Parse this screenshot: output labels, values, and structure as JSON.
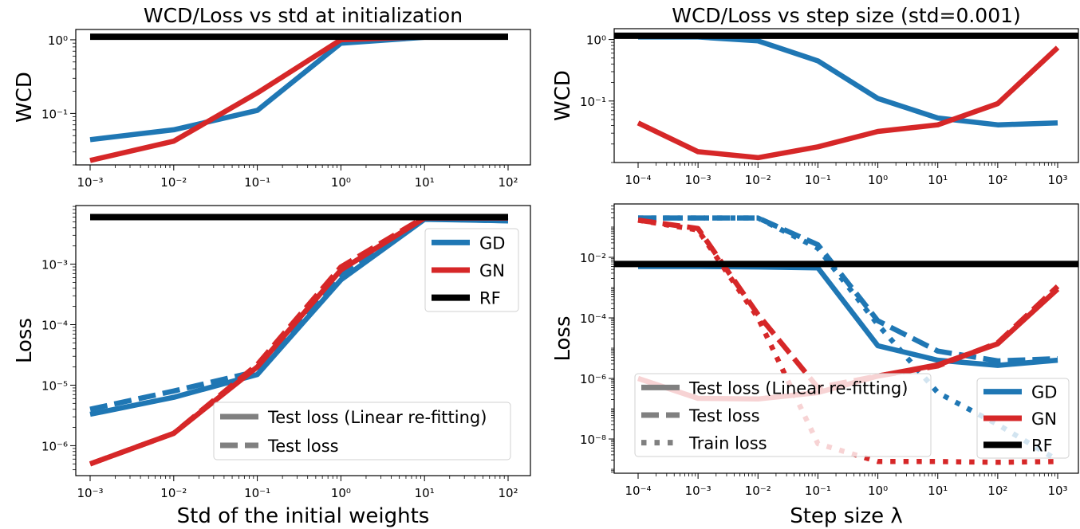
{
  "colors": {
    "GD": "#1f77b4",
    "GN": "#d62728",
    "RF": "#000000"
  },
  "chart_data": [
    {
      "type": "line",
      "title": "WCD/Loss vs std at initialization",
      "ylabel": "WCD",
      "xlabel": "",
      "xscale": "log",
      "yscale": "log",
      "xlim": [
        0.001,
        100
      ],
      "ylim": [
        0.02,
        1.38
      ],
      "xticks": [
        0.001,
        0.01,
        0.1,
        1,
        10,
        100
      ],
      "xtick_labels": [
        "10⁻³",
        "10⁻²",
        "10⁻¹",
        "10⁰",
        "10¹",
        "10²"
      ],
      "yticks": [
        0.1,
        1
      ],
      "ytick_labels": [
        "10⁻¹",
        "10⁰"
      ],
      "x": [
        0.001,
        0.01,
        0.1,
        1,
        10,
        100
      ],
      "series": [
        {
          "name": "GD",
          "style": "solid",
          "values": [
            0.044,
            0.06,
            0.11,
            0.9,
            1.08,
            1.1
          ]
        },
        {
          "name": "GN",
          "style": "solid",
          "values": [
            0.023,
            0.042,
            0.19,
            1.0,
            1.1,
            1.1
          ]
        },
        {
          "name": "RF",
          "style": "solid",
          "values": [
            1.1,
            1.1,
            1.1,
            1.1,
            1.1,
            1.1
          ]
        }
      ]
    },
    {
      "type": "line",
      "title": "WCD/Loss vs step size (std=0.001)",
      "ylabel": "WCD",
      "xlabel": "",
      "xscale": "log",
      "yscale": "log",
      "xlim": [
        0.0001,
        1000
      ],
      "ylim": [
        0.01,
        1.5
      ],
      "xticks": [
        0.0001,
        0.001,
        0.01,
        0.1,
        1,
        10,
        100,
        1000
      ],
      "xtick_labels": [
        "10⁻⁴",
        "10⁻³",
        "10⁻²",
        "10⁻¹",
        "10⁰",
        "10¹",
        "10²",
        "10³"
      ],
      "yticks": [
        0.1,
        1
      ],
      "ytick_labels": [
        "10⁻¹",
        "10⁰"
      ],
      "x": [
        0.0001,
        0.001,
        0.01,
        0.1,
        1,
        10,
        100,
        1000
      ],
      "rf_full_width": true,
      "series": [
        {
          "name": "GD",
          "style": "solid",
          "values": [
            1.1,
            1.1,
            0.95,
            0.45,
            0.11,
            0.053,
            0.041,
            0.044
          ]
        },
        {
          "name": "GN",
          "style": "solid",
          "values": [
            0.044,
            0.015,
            0.012,
            0.018,
            0.032,
            0.041,
            0.091,
            0.74
          ]
        },
        {
          "name": "RF",
          "style": "solid",
          "values": [
            1.15,
            1.15,
            1.15,
            1.15,
            1.15,
            1.15,
            1.15,
            1.15
          ]
        }
      ]
    },
    {
      "type": "line",
      "title": "",
      "ylabel": "Loss",
      "xlabel": "Std of the initial weights",
      "xscale": "log",
      "yscale": "log",
      "xlim": [
        0.001,
        100
      ],
      "ylim": [
        3.2e-07,
        0.0093
      ],
      "xticks": [
        0.001,
        0.01,
        0.1,
        1,
        10,
        100
      ],
      "xtick_labels": [
        "10⁻³",
        "10⁻²",
        "10⁻¹",
        "10⁰",
        "10¹",
        "10²"
      ],
      "yticks": [
        1e-06,
        1e-05,
        0.0001,
        0.001
      ],
      "ytick_labels": [
        "10⁻⁶",
        "10⁻⁵",
        "10⁻⁴",
        "10⁻³"
      ],
      "x": [
        0.001,
        0.01,
        0.1,
        1,
        10,
        100
      ],
      "series": [
        {
          "name": "GD",
          "style": "solid",
          "values": [
            3.3e-06,
            6.3e-06,
            1.5e-05,
            0.00055,
            0.0055,
            0.0052
          ]
        },
        {
          "name": "GD",
          "style": "dashed",
          "values": [
            4e-06,
            8e-06,
            1.7e-05,
            0.0007,
            0.0056,
            0.0052
          ]
        },
        {
          "name": "GN",
          "style": "solid",
          "values": [
            5e-07,
            1.6e-06,
            2e-05,
            0.0008,
            0.0058,
            0.0058
          ]
        },
        {
          "name": "GN",
          "style": "dashed",
          "values": [
            5e-07,
            1.6e-06,
            2.2e-05,
            0.0009,
            0.006,
            0.0058
          ]
        },
        {
          "name": "RF",
          "style": "solid",
          "values": [
            0.006,
            0.006,
            0.006,
            0.006,
            0.006,
            0.006
          ]
        }
      ],
      "legends": [
        {
          "placement": "upper right",
          "entries": [
            {
              "label": "GD",
              "color": "#1f77b4",
              "style": "solid"
            },
            {
              "label": "GN",
              "color": "#d62728",
              "style": "solid"
            },
            {
              "label": "RF",
              "color": "#000000",
              "style": "solid"
            }
          ]
        },
        {
          "placement": "lower right",
          "entries": [
            {
              "label": "Test loss (Linear re-fitting)",
              "color": "#808080",
              "style": "solid"
            },
            {
              "label": "Test loss",
              "color": "#808080",
              "style": "dashed"
            }
          ]
        }
      ]
    },
    {
      "type": "line",
      "title": "",
      "ylabel": "Loss",
      "xlabel": "Step size λ",
      "xscale": "log",
      "yscale": "log",
      "xlim": [
        0.0001,
        1000
      ],
      "ylim": [
        7.4e-10,
        0.58
      ],
      "xticks": [
        0.0001,
        0.001,
        0.01,
        0.1,
        1,
        10,
        100,
        1000
      ],
      "xtick_labels": [
        "10⁻⁴",
        "10⁻³",
        "10⁻²",
        "10⁻¹",
        "10⁰",
        "10¹",
        "10²",
        "10³"
      ],
      "yticks": [
        1e-08,
        1e-06,
        0.0001,
        0.01
      ],
      "ytick_labels": [
        "10⁻⁸",
        "10⁻⁶",
        "10⁻⁴",
        "10⁻²"
      ],
      "x": [
        0.0001,
        0.001,
        0.01,
        0.1,
        1,
        10,
        100,
        1000
      ],
      "rf_full_width": true,
      "series": [
        {
          "name": "GD",
          "style": "solid",
          "values": [
            0.005,
            0.005,
            0.0048,
            0.0045,
            1.2e-05,
            4e-06,
            2.7e-06,
            4e-06
          ]
        },
        {
          "name": "GD",
          "style": "dashed",
          "values": [
            0.2,
            0.2,
            0.2,
            0.026,
            8e-05,
            8e-06,
            3.8e-06,
            4.5e-06
          ]
        },
        {
          "name": "GD",
          "style": "dotted",
          "values": [
            0.2,
            0.2,
            0.2,
            0.02,
            6e-05,
            3.4e-07,
            3e-08,
            2e-09
          ]
        },
        {
          "name": "GN",
          "style": "solid",
          "values": [
            1e-06,
            2.2e-07,
            2.1e-07,
            3.4e-07,
            1.2e-06,
            2.8e-06,
            1.4e-05,
            0.0009
          ]
        },
        {
          "name": "GN",
          "style": "dashed",
          "values": [
            0.17,
            0.09,
            0.00013,
            5e-07,
            1.2e-06,
            2.6e-06,
            1.5e-05,
            0.0011
          ]
        },
        {
          "name": "GN",
          "style": "dotted",
          "values": [
            0.17,
            0.08,
            0.0001,
            7e-09,
            1.8e-09,
            1.8e-09,
            1.7e-09,
            1.8e-09
          ]
        },
        {
          "name": "RF",
          "style": "solid",
          "values": [
            0.006,
            0.006,
            0.006,
            0.006,
            0.006,
            0.006,
            0.006,
            0.006
          ]
        }
      ],
      "legends": [
        {
          "placement": "lower left",
          "entries": [
            {
              "label": "Test loss (Linear re-fitting)",
              "color": "#808080",
              "style": "solid"
            },
            {
              "label": "Test loss",
              "color": "#808080",
              "style": "dashed"
            },
            {
              "label": "Train loss",
              "color": "#808080",
              "style": "dotted"
            }
          ]
        },
        {
          "placement": "lower right",
          "entries": [
            {
              "label": "GD",
              "color": "#1f77b4",
              "style": "solid"
            },
            {
              "label": "GN",
              "color": "#d62728",
              "style": "solid"
            },
            {
              "label": "RF",
              "color": "#000000",
              "style": "solid"
            }
          ]
        }
      ]
    }
  ]
}
